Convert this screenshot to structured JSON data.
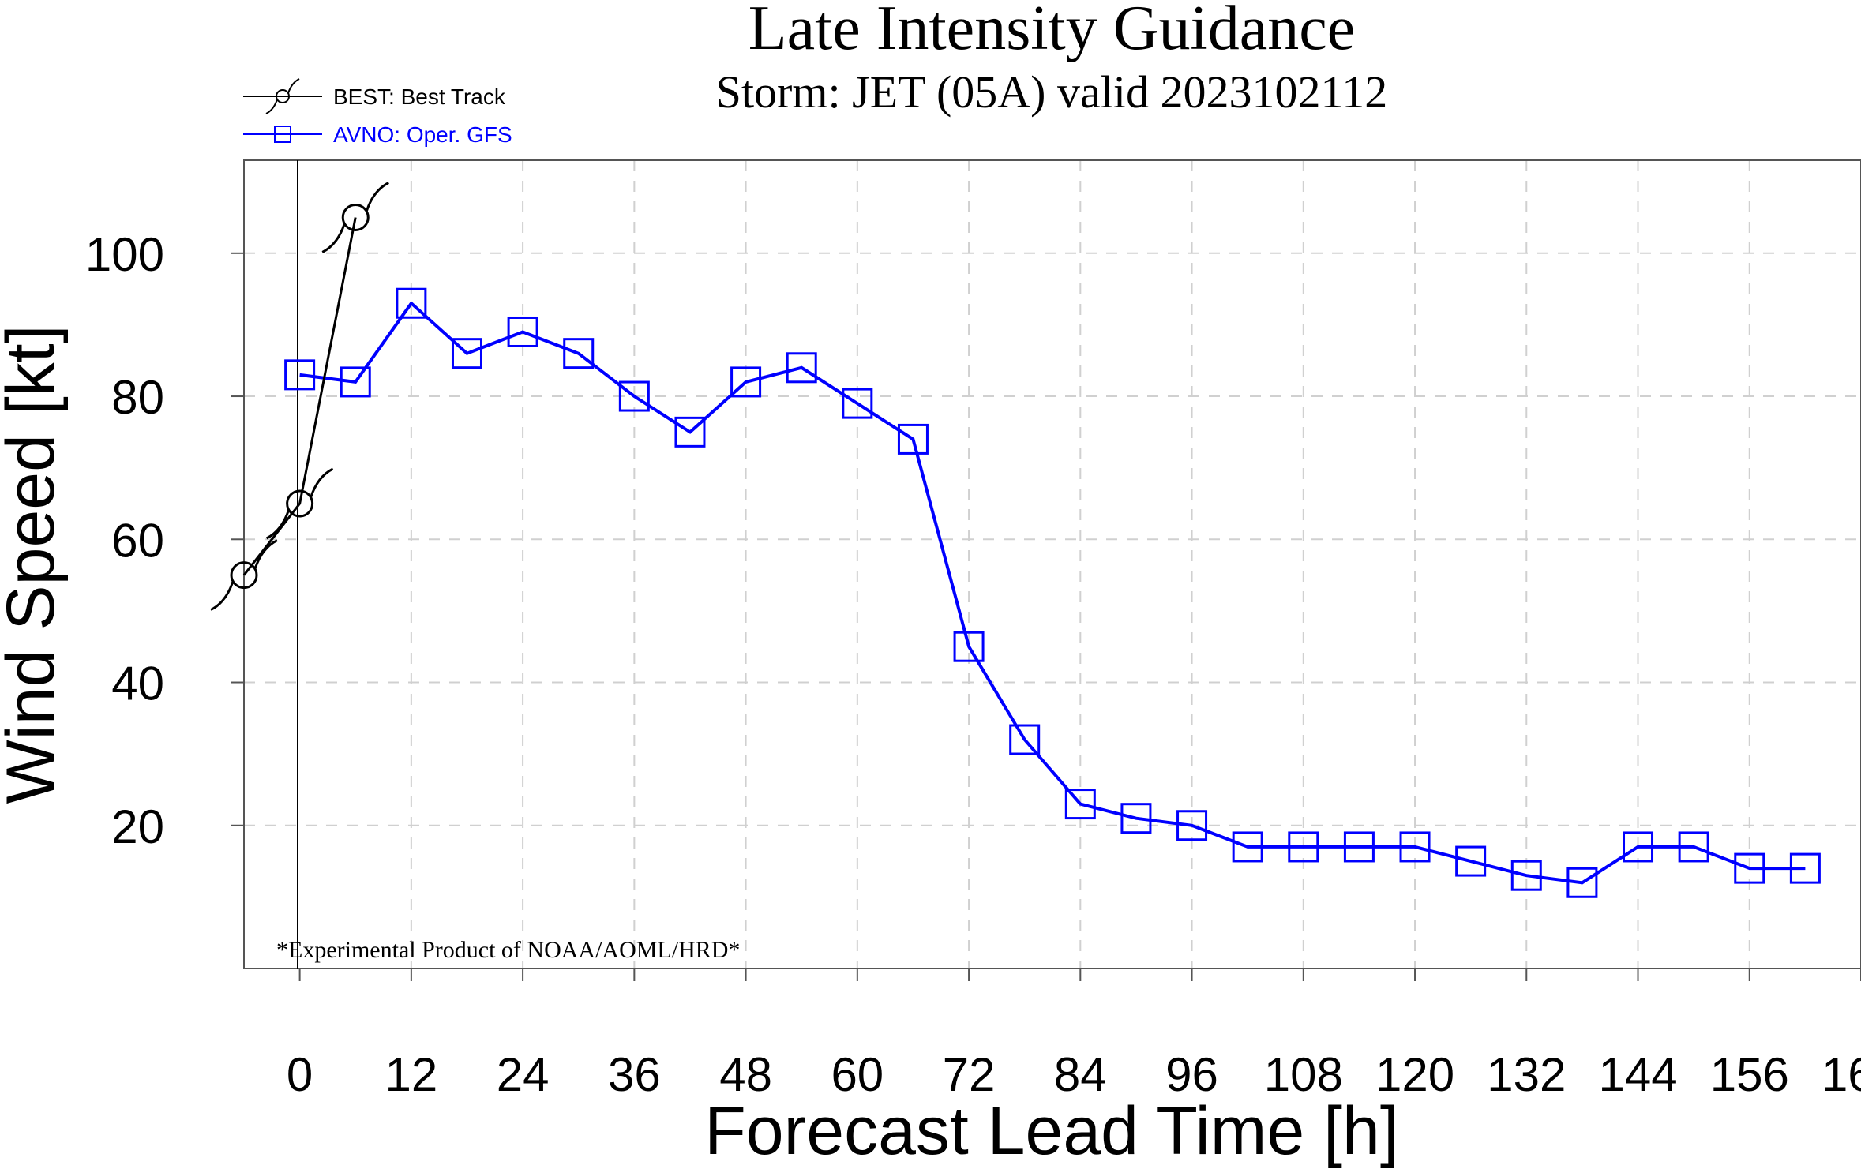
{
  "chart_data": {
    "type": "line",
    "title": "Late Intensity Guidance",
    "subtitle": "Storm: JET (05A) valid 2023102112",
    "xlabel": "Forecast Lead Time [h]",
    "ylabel": "Wind Speed [kt]",
    "xlim": [
      -6,
      168
    ],
    "ylim": [
      0,
      113
    ],
    "x_ticks": [
      0,
      12,
      24,
      36,
      48,
      60,
      72,
      84,
      96,
      108,
      120,
      132,
      144,
      156,
      168
    ],
    "y_ticks": [
      20,
      40,
      60,
      80,
      100
    ],
    "grid": true,
    "legend_position": "top-left",
    "annotation": "*Experimental Product of NOAA/AOML/HRD*",
    "series": [
      {
        "name": "BEST: Best Track",
        "color": "#000000",
        "marker": "hurricane-icon",
        "x": [
          -6,
          0,
          6
        ],
        "y": [
          55,
          65,
          105
        ]
      },
      {
        "name": "AVNO: Oper. GFS",
        "color": "#0000ff",
        "marker": "open-square",
        "x": [
          0,
          6,
          12,
          18,
          24,
          30,
          36,
          42,
          48,
          54,
          60,
          66,
          72,
          78,
          84,
          90,
          96,
          102,
          108,
          114,
          120,
          126,
          132,
          138,
          144,
          150,
          156,
          162
        ],
        "y": [
          83,
          82,
          93,
          86,
          89,
          86,
          80,
          75,
          82,
          84,
          79,
          74,
          45,
          32,
          23,
          21,
          20,
          17,
          17,
          17,
          17,
          15,
          13,
          12,
          17,
          17,
          14,
          14
        ]
      }
    ]
  }
}
